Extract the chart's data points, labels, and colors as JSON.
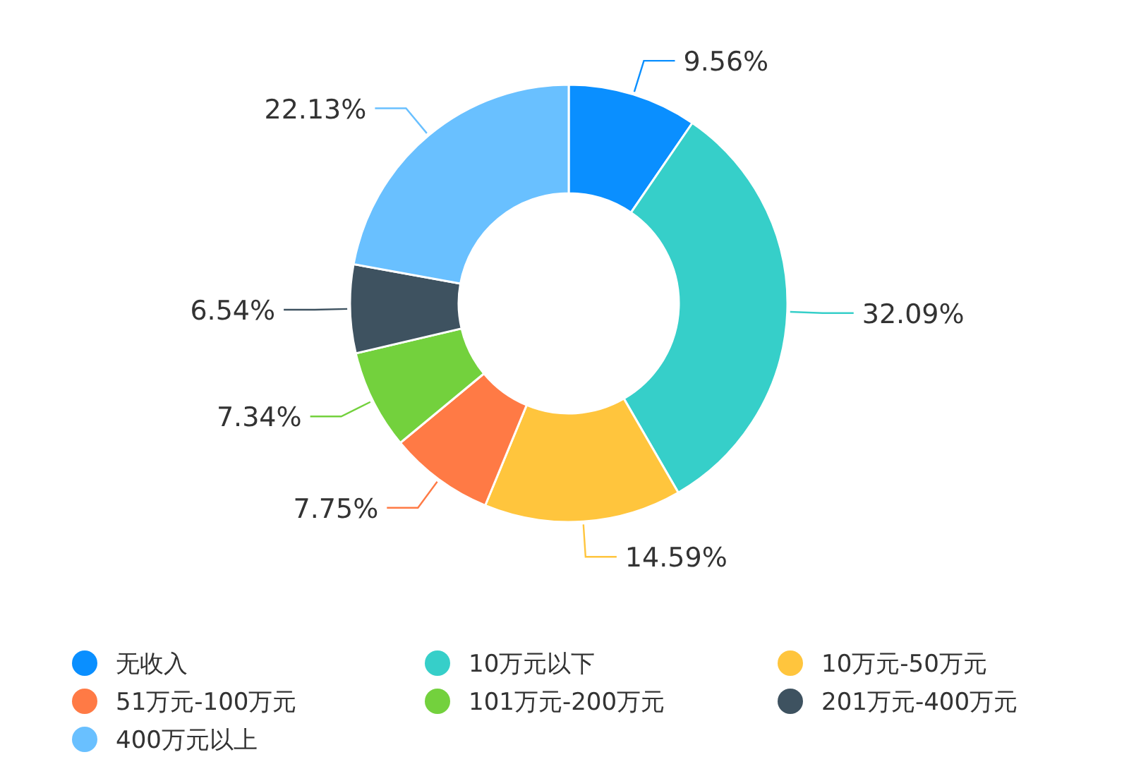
{
  "chart_data": {
    "type": "donut",
    "categories": [
      "无收入",
      "10万元以下",
      "10万元-50万元",
      "51万元-100万元",
      "101万元-200万元",
      "201万元-400万元",
      "400万元以上"
    ],
    "values": [
      9.56,
      32.09,
      14.59,
      7.75,
      7.34,
      6.54,
      22.13
    ],
    "value_labels": [
      "9.56%",
      "32.09%",
      "14.59%",
      "7.75%",
      "7.34%",
      "6.54%",
      "22.13%"
    ],
    "colors": [
      "#0a8fff",
      "#36cfc9",
      "#ffc53d",
      "#ff7a45",
      "#73d13d",
      "#3e5260",
      "#69c0ff"
    ],
    "legend": "bottom"
  }
}
